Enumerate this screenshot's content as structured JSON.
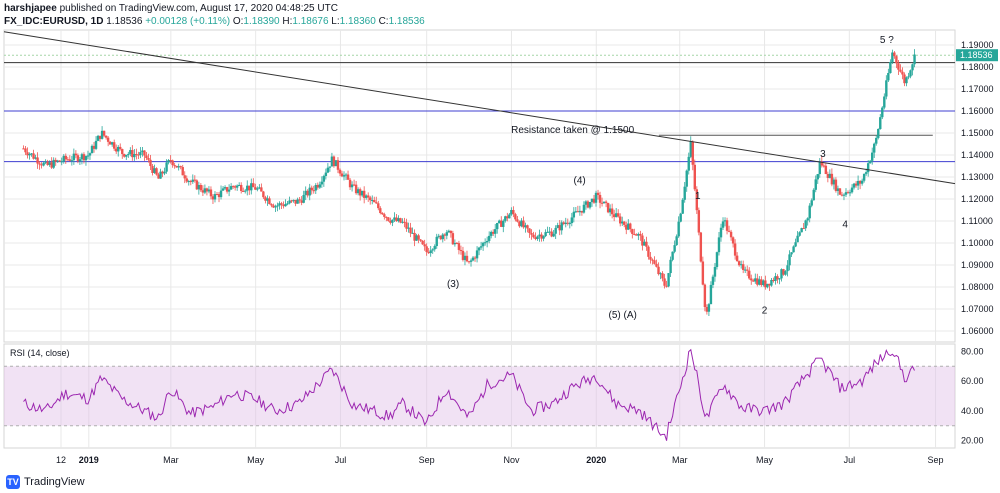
{
  "header": {
    "line1_user": "harshjapee",
    "line1_rest": "published on TradingView.com, August 17, 2020 04:48:25 UTC",
    "symbol": "FX_IDC:EURUSD, 1D",
    "last": "1.18536",
    "change": "+0.00128 (+0.11%)",
    "o_label": "O:",
    "o": "1.18390",
    "h_label": "H:",
    "h": "1.18676",
    "l_label": "L:",
    "l": "1.18360",
    "c_label": "C:",
    "c": "1.18536"
  },
  "footer": {
    "brand": "TradingView",
    "logo_glyph": "TV"
  },
  "colors": {
    "up": "#26a69a",
    "down": "#ef5350",
    "rsi_line": "#9c27b0",
    "rsi_band": "#e1bee7",
    "hline_blue": "#3f3fd0",
    "grid": "#e8e8e8",
    "price_tag": "#26a69a"
  },
  "chart_data": [
    {
      "type": "candlestick",
      "title": "FX_IDC:EURUSD, 1D",
      "ylim": [
        1.055,
        1.195
      ],
      "y_ticks": [
        "1.19000",
        "1.18000",
        "1.17000",
        "1.16000",
        "1.15000",
        "1.14000",
        "1.13000",
        "1.12000",
        "1.11000",
        "1.10000",
        "1.09000",
        "1.08000",
        "1.07000",
        "1.06000"
      ],
      "x_ticks": [
        "12",
        "2019",
        "Mar",
        "May",
        "Jul",
        "Sep",
        "Nov",
        "2020",
        "Mar",
        "May",
        "Jul",
        "Sep"
      ],
      "last_price_label": "1.18536",
      "horizontal_lines": [
        1.182,
        1.16,
        1.137,
        1.149
      ],
      "trendline": {
        "from": [
          "2018-11-01",
          1.196
        ],
        "to": [
          "2020-09-15",
          1.127
        ]
      },
      "annotations": [
        "5 ?",
        "Resistance taken @ 1.1500",
        "3",
        "(4)",
        "1",
        "4",
        "(3)",
        "(5) (A)",
        "2"
      ],
      "series": [
        {
          "values": [
            [
              "2018-11-15",
              1.143
            ],
            [
              "2018-12-01",
              1.135
            ],
            [
              "2018-12-15",
              1.138
            ],
            [
              "2019-01-01",
              1.14
            ],
            [
              "2019-01-10",
              1.15
            ],
            [
              "2019-01-25",
              1.141
            ],
            [
              "2019-02-10",
              1.14
            ],
            [
              "2019-02-20",
              1.129
            ],
            [
              "2019-03-01",
              1.138
            ],
            [
              "2019-03-15",
              1.128
            ],
            [
              "2019-04-01",
              1.121
            ],
            [
              "2019-04-15",
              1.126
            ],
            [
              "2019-05-01",
              1.125
            ],
            [
              "2019-05-15",
              1.117
            ],
            [
              "2019-06-01",
              1.119
            ],
            [
              "2019-06-15",
              1.127
            ],
            [
              "2019-06-25",
              1.138
            ],
            [
              "2019-07-10",
              1.125
            ],
            [
              "2019-07-25",
              1.118
            ],
            [
              "2019-08-05",
              1.111
            ],
            [
              "2019-08-15",
              1.109
            ],
            [
              "2019-09-01",
              1.096
            ],
            [
              "2019-09-15",
              1.106
            ],
            [
              "2019-10-01",
              1.09
            ],
            [
              "2019-10-15",
              1.103
            ],
            [
              "2019-11-01",
              1.114
            ],
            [
              "2019-11-15",
              1.103
            ],
            [
              "2019-12-01",
              1.105
            ],
            [
              "2019-12-15",
              1.112
            ],
            [
              "2020-01-01",
              1.121
            ],
            [
              "2020-01-15",
              1.112
            ],
            [
              "2020-02-01",
              1.103
            ],
            [
              "2020-02-20",
              1.08
            ],
            [
              "2020-03-01",
              1.112
            ],
            [
              "2020-03-09",
              1.145
            ],
            [
              "2020-03-20",
              1.066
            ],
            [
              "2020-04-01",
              1.112
            ],
            [
              "2020-04-15",
              1.087
            ],
            [
              "2020-05-01",
              1.081
            ],
            [
              "2020-05-15",
              1.087
            ],
            [
              "2020-06-01",
              1.112
            ],
            [
              "2020-06-10",
              1.137
            ],
            [
              "2020-06-25",
              1.122
            ],
            [
              "2020-07-10",
              1.128
            ],
            [
              "2020-07-20",
              1.146
            ],
            [
              "2020-08-01",
              1.187
            ],
            [
              "2020-08-10",
              1.173
            ],
            [
              "2020-08-17",
              1.185
            ]
          ]
        }
      ]
    },
    {
      "type": "line",
      "title": "RSI (14, close)",
      "ylim": [
        15,
        85
      ],
      "y_ticks": [
        "80.00",
        "60.00",
        "40.00",
        "20.00"
      ],
      "band": [
        30,
        70
      ],
      "series": [
        {
          "name": "RSI",
          "values": [
            [
              "2018-11-15",
              45
            ],
            [
              "2018-12-01",
              40
            ],
            [
              "2018-12-15",
              52
            ],
            [
              "2019-01-01",
              48
            ],
            [
              "2019-01-10",
              62
            ],
            [
              "2019-01-25",
              48
            ],
            [
              "2019-02-10",
              40
            ],
            [
              "2019-02-20",
              35
            ],
            [
              "2019-03-01",
              55
            ],
            [
              "2019-03-15",
              38
            ],
            [
              "2019-04-01",
              43
            ],
            [
              "2019-04-15",
              52
            ],
            [
              "2019-05-01",
              48
            ],
            [
              "2019-05-15",
              40
            ],
            [
              "2019-06-01",
              45
            ],
            [
              "2019-06-15",
              58
            ],
            [
              "2019-06-25",
              68
            ],
            [
              "2019-07-10",
              44
            ],
            [
              "2019-07-25",
              40
            ],
            [
              "2019-08-05",
              36
            ],
            [
              "2019-08-15",
              45
            ],
            [
              "2019-09-01",
              31
            ],
            [
              "2019-09-15",
              55
            ],
            [
              "2019-10-01",
              35
            ],
            [
              "2019-10-15",
              58
            ],
            [
              "2019-11-01",
              64
            ],
            [
              "2019-11-15",
              40
            ],
            [
              "2019-12-01",
              45
            ],
            [
              "2019-12-15",
              56
            ],
            [
              "2020-01-01",
              64
            ],
            [
              "2020-01-15",
              45
            ],
            [
              "2020-02-01",
              40
            ],
            [
              "2020-02-20",
              22
            ],
            [
              "2020-03-01",
              55
            ],
            [
              "2020-03-09",
              82
            ],
            [
              "2020-03-20",
              34
            ],
            [
              "2020-04-01",
              58
            ],
            [
              "2020-04-15",
              42
            ],
            [
              "2020-05-01",
              40
            ],
            [
              "2020-05-15",
              45
            ],
            [
              "2020-06-01",
              65
            ],
            [
              "2020-06-10",
              75
            ],
            [
              "2020-06-25",
              55
            ],
            [
              "2020-07-10",
              60
            ],
            [
              "2020-07-20",
              72
            ],
            [
              "2020-08-01",
              82
            ],
            [
              "2020-08-10",
              62
            ],
            [
              "2020-08-17",
              68
            ]
          ]
        }
      ]
    }
  ]
}
